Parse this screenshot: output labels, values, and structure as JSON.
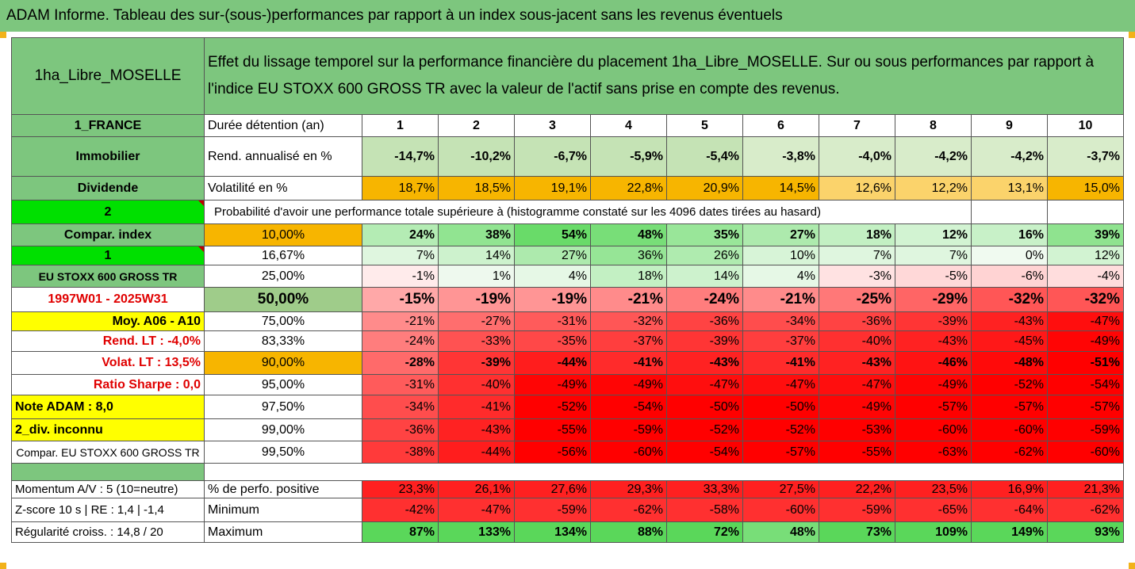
{
  "banner": "ADAM Informe. Tableau des sur-(sous-)performances par rapport à un index sous-jacent sans les revenus éventuels",
  "header": {
    "name": "1ha_Libre_MOSELLE",
    "desc1": "Effet du lissage temporel sur la performance financière du placement 1ha_Libre_MOSELLE. Sur ou sous performances par rapport à",
    "desc2": "l'indice EU STOXX 600 GROSS TR avec la valeur de l'actif sans prise en compte des revenus."
  },
  "rows": [
    {
      "left": "1_FRANCE",
      "label": "Durée détention (an)",
      "values": [
        "1",
        "2",
        "3",
        "4",
        "5",
        "6",
        "7",
        "8",
        "9",
        "10"
      ]
    },
    {
      "left": "Immobilier",
      "label": "Rend. annualisé en %",
      "values": [
        "-14,7%",
        "-10,2%",
        "-6,7%",
        "-5,9%",
        "-5,4%",
        "-3,8%",
        "-4,0%",
        "-4,2%",
        "-4,2%",
        "-3,7%"
      ]
    },
    {
      "left": "Dividende",
      "label": "Volatilité en %",
      "values": [
        "18,7%",
        "18,5%",
        "19,1%",
        "22,8%",
        "20,9%",
        "14,5%",
        "12,6%",
        "12,2%",
        "13,1%",
        "15,0%"
      ]
    },
    {
      "left": "2",
      "label": "Probabilité d'avoir une performance totale supérieure à (histogramme constaté sur les 4096 dates tirées au hasard)"
    },
    {
      "left": "Compar. index",
      "label": "10,00%",
      "values": [
        "24%",
        "38%",
        "54%",
        "48%",
        "35%",
        "27%",
        "18%",
        "12%",
        "16%",
        "39%"
      ]
    },
    {
      "left": "1",
      "label": "16,67%",
      "values": [
        "7%",
        "14%",
        "27%",
        "36%",
        "26%",
        "10%",
        "7%",
        "7%",
        "0%",
        "12%"
      ]
    },
    {
      "left": "EU STOXX 600 GROSS TR",
      "label": "25,00%",
      "values": [
        "-1%",
        "1%",
        "4%",
        "18%",
        "14%",
        "4%",
        "-3%",
        "-5%",
        "-6%",
        "-4%"
      ]
    },
    {
      "left": "1997W01 - 2025W31",
      "label": "50,00%",
      "values": [
        "-15%",
        "-19%",
        "-19%",
        "-21%",
        "-24%",
        "-21%",
        "-25%",
        "-29%",
        "-32%",
        "-32%"
      ]
    },
    {
      "left": "Moy. A06 - A10",
      "label": "75,00%",
      "values": [
        "-21%",
        "-27%",
        "-31%",
        "-32%",
        "-36%",
        "-34%",
        "-36%",
        "-39%",
        "-43%",
        "-47%"
      ]
    },
    {
      "left": "Rend. LT :   -4,0%",
      "label": "83,33%",
      "values": [
        "-24%",
        "-33%",
        "-35%",
        "-37%",
        "-39%",
        "-37%",
        "-40%",
        "-43%",
        "-45%",
        "-49%"
      ]
    },
    {
      "left": "Volat. LT :   13,5%",
      "label": "90,00%",
      "values": [
        "-28%",
        "-39%",
        "-44%",
        "-41%",
        "-43%",
        "-41%",
        "-43%",
        "-46%",
        "-48%",
        "-51%"
      ]
    },
    {
      "left": "Ratio Sharpe :   0,0",
      "label": "95,00%",
      "values": [
        "-31%",
        "-40%",
        "-49%",
        "-49%",
        "-47%",
        "-47%",
        "-47%",
        "-49%",
        "-52%",
        "-54%"
      ]
    },
    {
      "left": "Note ADAM : 8,0",
      "label": "97,50%",
      "values": [
        "-34%",
        "-41%",
        "-52%",
        "-54%",
        "-50%",
        "-50%",
        "-49%",
        "-57%",
        "-57%",
        "-57%"
      ]
    },
    {
      "left": "2_div. inconnu",
      "label": "99,00%",
      "values": [
        "-36%",
        "-43%",
        "-55%",
        "-59%",
        "-52%",
        "-52%",
        "-53%",
        "-60%",
        "-60%",
        "-59%"
      ]
    },
    {
      "left": "Compar. EU STOXX 600 GROSS TR",
      "label": "99,50%",
      "values": [
        "-38%",
        "-44%",
        "-56%",
        "-60%",
        "-54%",
        "-57%",
        "-55%",
        "-63%",
        "-62%",
        "-60%"
      ]
    },
    {
      "left": "Momentum A/V : 5 (10=neutre)",
      "label": "% de perfo. positive",
      "values": [
        "23,3%",
        "26,1%",
        "27,6%",
        "29,3%",
        "33,3%",
        "27,5%",
        "22,2%",
        "23,5%",
        "16,9%",
        "21,3%"
      ]
    },
    {
      "left": "Z-score 10 s  |  RE : 1,4  |  -1,4",
      "label": "Minimum",
      "values": [
        "-42%",
        "-47%",
        "-59%",
        "-62%",
        "-58%",
        "-60%",
        "-59%",
        "-65%",
        "-64%",
        "-62%"
      ]
    },
    {
      "left": "Régularité croiss. : 14,8 / 20",
      "label": "Maximum",
      "values": [
        "87%",
        "133%",
        "134%",
        "88%",
        "72%",
        "48%",
        "73%",
        "109%",
        "149%",
        "93%"
      ]
    }
  ],
  "colors": {
    "header_green": "#7dc67e",
    "highlight_yellow": "#ffff00",
    "highlight_orange": "#f7b500",
    "bright_green": "#00e000",
    "negative_red": "#ff0000",
    "positive_green": "#2fd12f"
  }
}
